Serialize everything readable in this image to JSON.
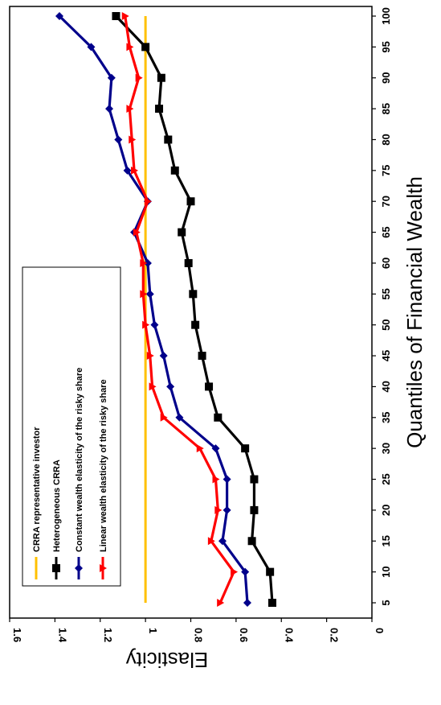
{
  "chart_data": {
    "type": "line",
    "orientation": "rotated 90 degrees clockwise",
    "xlabel": "Quantiles of Financial Wealth",
    "ylabel": "Elasticity",
    "x": [
      5,
      10,
      15,
      20,
      25,
      30,
      35,
      40,
      45,
      50,
      55,
      60,
      65,
      70,
      75,
      80,
      85,
      90,
      95,
      100
    ],
    "x_ticks": [
      "5",
      "10",
      "15",
      "20",
      "25",
      "30",
      "35",
      "40",
      "45",
      "50",
      "55",
      "60",
      "65",
      "70",
      "75",
      "80",
      "85",
      "90",
      "95",
      "100"
    ],
    "ylim": [
      0,
      1.6
    ],
    "y_ticks": [
      "0",
      "0.2",
      "0.4",
      "0.6",
      "0.8",
      "1",
      "1.2",
      "1.4",
      "1.6"
    ],
    "grid": false,
    "legend_position": "upper-left (rotated)",
    "series": [
      {
        "name": "CRRA representative investor",
        "color": "#FFC000",
        "marker": "none",
        "values": [
          1,
          1,
          1,
          1,
          1,
          1,
          1,
          1,
          1,
          1,
          1,
          1,
          1,
          1,
          1,
          1,
          1,
          1,
          1,
          1
        ]
      },
      {
        "name": "Heterogeneous CRRA",
        "color": "#000000",
        "marker": "square",
        "values": [
          0.44,
          0.45,
          0.53,
          0.52,
          0.52,
          0.56,
          0.68,
          0.72,
          0.75,
          0.78,
          0.79,
          0.81,
          0.84,
          0.8,
          0.87,
          0.9,
          0.94,
          0.93,
          1.0,
          1.13
        ]
      },
      {
        "name": "Constant wealth elasticity of the risky share",
        "color": "#00008B",
        "marker": "diamond",
        "values": [
          0.55,
          0.56,
          0.66,
          0.64,
          0.64,
          0.69,
          0.85,
          0.89,
          0.92,
          0.96,
          0.98,
          0.99,
          1.05,
          0.99,
          1.08,
          1.12,
          1.16,
          1.15,
          1.24,
          1.38
        ]
      },
      {
        "name": "Linear wealth elasticity of the risky share",
        "color": "#FF0000",
        "marker": "triangle",
        "values": [
          0.67,
          0.61,
          0.71,
          0.68,
          0.69,
          0.76,
          0.92,
          0.97,
          0.98,
          1.0,
          1.01,
          1.01,
          1.04,
          0.99,
          1.05,
          1.06,
          1.07,
          1.03,
          1.07,
          1.09
        ]
      }
    ]
  }
}
